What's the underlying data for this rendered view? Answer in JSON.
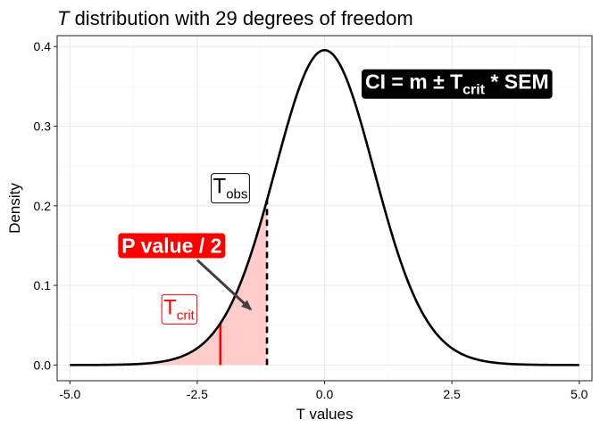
{
  "chart_data": {
    "type": "line",
    "title_italic": "T",
    "title_rest": " distribution with 29 degrees of freedom",
    "xlabel": "T values",
    "ylabel": "Density",
    "xlim": [
      -5.25,
      5.25
    ],
    "ylim": [
      -0.0197,
      0.4137
    ],
    "x_ticks": [
      -5.0,
      -2.5,
      0.0,
      2.5,
      5.0
    ],
    "x_tick_labels": [
      "-5.0",
      "-2.5",
      "0.0",
      "2.5",
      "5.0"
    ],
    "y_ticks": [
      0.0,
      0.1,
      0.2,
      0.3,
      0.4
    ],
    "y_tick_labels": [
      "0.0",
      "0.1",
      "0.2",
      "0.3",
      "0.4"
    ],
    "grid": true,
    "degrees_of_freedom": 29,
    "series": [
      {
        "x_range": [
          -5,
          5
        ],
        "density": "t",
        "color": "#000000"
      }
    ],
    "shaded_region": {
      "from": -5,
      "to": -1.13,
      "color": "#ffcccc"
    },
    "t_obs": {
      "x": -1.13,
      "style": "dashed",
      "color": "#000000"
    },
    "t_crit": {
      "x": -2.045,
      "color": "#ff0000"
    },
    "annotations": {
      "t_obs": {
        "main": "T",
        "sub": "obs",
        "x": -1.85,
        "y": 0.222
      },
      "t_crit": {
        "main": "T",
        "sub": "crit",
        "x": -2.85,
        "y": 0.07
      },
      "p_value": {
        "text": "P value / 2",
        "x": -3.0,
        "y": 0.15,
        "bg": "#ff0000",
        "fg": "#ffffff"
      },
      "ci": {
        "pre": "CI = m ± T",
        "sub": "crit",
        "post": " * SEM",
        "x": 2.6,
        "y": 0.353,
        "bg": "#000000",
        "fg": "#ffffff"
      },
      "arrow": {
        "from": [
          -2.5,
          0.132
        ],
        "to": [
          -1.45,
          0.07
        ],
        "color": "#404040"
      }
    }
  }
}
